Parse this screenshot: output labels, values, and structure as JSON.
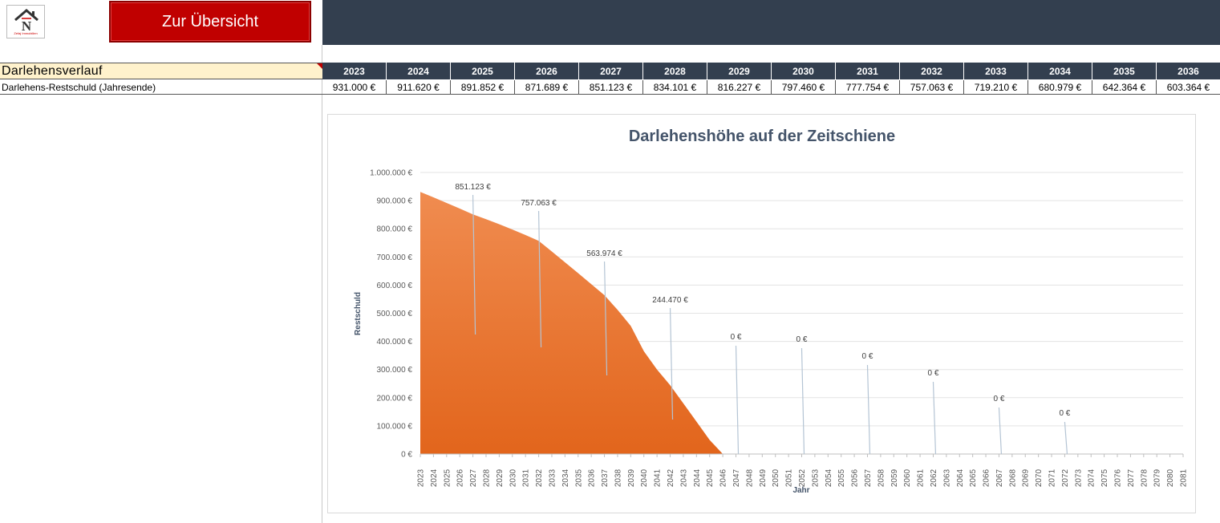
{
  "header": {
    "logo_text": "Zefaj Immobilien",
    "nav_button_label": "Zur Übersicht"
  },
  "table": {
    "section_title": "Darlehensverlauf",
    "row_label": "Darlehens-Restschuld (Jahresende)",
    "years": [
      "2023",
      "2024",
      "2025",
      "2026",
      "2027",
      "2028",
      "2029",
      "2030",
      "2031",
      "2032",
      "2033",
      "2034",
      "2035",
      "2036"
    ],
    "values": [
      "931.000 €",
      "911.620 €",
      "891.852 €",
      "871.689 €",
      "851.123 €",
      "834.101 €",
      "816.227 €",
      "797.460 €",
      "777.754 €",
      "757.063 €",
      "719.210 €",
      "680.979 €",
      "642.364 €",
      "603.364 €"
    ]
  },
  "colors": {
    "header_bg": "#333f4f",
    "button_bg": "#c00000",
    "section_bg": "#fff2cc",
    "area_top": "#f08c50",
    "area_bottom": "#e2651c"
  },
  "chart_data": {
    "type": "area",
    "title": "Darlehenshöhe auf der Zeitschiene",
    "xlabel": "Jahr",
    "ylabel": "Restschuld",
    "ylim": [
      0,
      1000000
    ],
    "yticks": [
      "0 €",
      "100.000 €",
      "200.000 €",
      "300.000 €",
      "400.000 €",
      "500.000 €",
      "600.000 €",
      "700.000 €",
      "800.000 €",
      "900.000 €",
      "1.000.000 €"
    ],
    "x": [
      2023,
      2024,
      2025,
      2026,
      2027,
      2028,
      2029,
      2030,
      2031,
      2032,
      2033,
      2034,
      2035,
      2036,
      2037,
      2038,
      2039,
      2040,
      2041,
      2042,
      2043,
      2044,
      2045,
      2046,
      2047,
      2048,
      2049,
      2050,
      2051,
      2052,
      2053,
      2054,
      2055,
      2056,
      2057,
      2058,
      2059,
      2060,
      2061,
      2062,
      2063,
      2064,
      2065,
      2066,
      2067,
      2068,
      2069,
      2070,
      2071,
      2072,
      2073,
      2074,
      2075,
      2076,
      2077,
      2078,
      2079,
      2080,
      2081
    ],
    "values": [
      931000,
      911620,
      891852,
      871689,
      851123,
      834101,
      816227,
      797460,
      777754,
      757063,
      719210,
      680979,
      642364,
      603364,
      563974,
      512000,
      455000,
      365000,
      300000,
      244470,
      180000,
      115000,
      50000,
      0,
      0,
      0,
      0,
      0,
      0,
      0,
      0,
      0,
      0,
      0,
      0,
      0,
      0,
      0,
      0,
      0,
      0,
      0,
      0,
      0,
      0,
      0,
      0,
      0,
      0,
      0,
      0,
      0,
      0,
      0,
      0,
      0,
      0,
      0,
      0
    ],
    "data_labels": [
      {
        "year": 2027,
        "text": "851.123 €"
      },
      {
        "year": 2032,
        "text": "757.063 €"
      },
      {
        "year": 2037,
        "text": "563.974 €"
      },
      {
        "year": 2042,
        "text": "244.470 €"
      },
      {
        "year": 2047,
        "text": "0 €"
      },
      {
        "year": 2052,
        "text": "0 €"
      },
      {
        "year": 2057,
        "text": "0 €"
      },
      {
        "year": 2062,
        "text": "0 €"
      },
      {
        "year": 2067,
        "text": "0 €"
      },
      {
        "year": 2072,
        "text": "0 €"
      }
    ],
    "grid": true,
    "legend": "none"
  }
}
